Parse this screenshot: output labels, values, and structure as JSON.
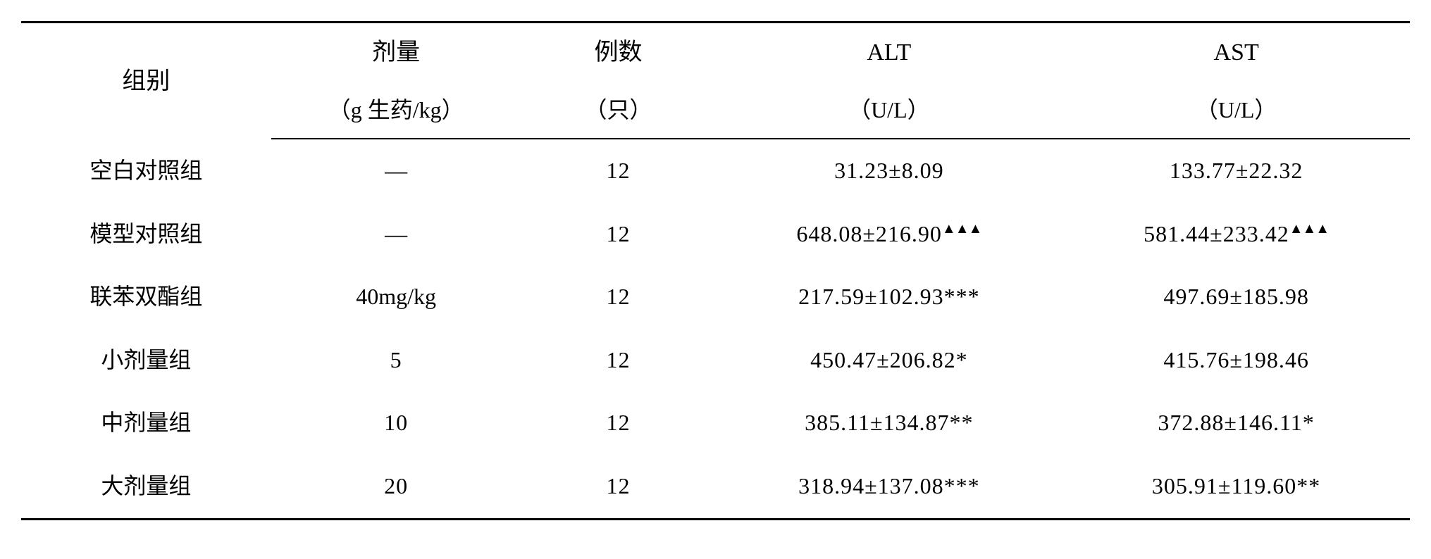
{
  "table": {
    "headers": {
      "group": {
        "main": "组别",
        "sub": ""
      },
      "dose": {
        "main": "剂量",
        "sub": "（g 生药/kg）"
      },
      "count": {
        "main": "例数",
        "sub": "（只）"
      },
      "alt": {
        "main": "ALT",
        "sub": "（U/L）"
      },
      "ast": {
        "main": "AST",
        "sub": "（U/L）"
      }
    },
    "rows": [
      {
        "group": "空白对照组",
        "dose": "—",
        "count": "12",
        "alt_val": "31.23±8.09",
        "alt_mark": "",
        "ast_val": "133.77±22.32",
        "ast_mark": ""
      },
      {
        "group": "模型对照组",
        "dose": "—",
        "count": "12",
        "alt_val": "648.08±216.90",
        "alt_mark": "▲▲▲",
        "ast_val": "581.44±233.42",
        "ast_mark": "▲▲▲"
      },
      {
        "group": "联苯双酯组",
        "dose": "40mg/kg",
        "count": "12",
        "alt_val": "217.59±102.93",
        "alt_mark": "***",
        "ast_val": "497.69±185.98",
        "ast_mark": ""
      },
      {
        "group": "小剂量组",
        "dose": "5",
        "count": "12",
        "alt_val": "450.47±206.82",
        "alt_mark": "*",
        "ast_val": "415.76±198.46",
        "ast_mark": ""
      },
      {
        "group": "中剂量组",
        "dose": "10",
        "count": "12",
        "alt_val": "385.11±134.87",
        "alt_mark": "**",
        "ast_val": "372.88±146.11",
        "ast_mark": "*"
      },
      {
        "group": "大剂量组",
        "dose": "20",
        "count": "12",
        "alt_val": "318.94±137.08",
        "alt_mark": "***",
        "ast_val": "305.91±119.60",
        "ast_mark": "**"
      }
    ],
    "styling": {
      "border_top_width": 3,
      "border_mid_width": 2,
      "border_bottom_width": 3,
      "border_color": "#000000",
      "background_color": "#ffffff",
      "font_size": 32,
      "header_font_size": 34,
      "font_family_cjk": "SimSun",
      "font_family_latin": "Times New Roman",
      "column_widths_pct": [
        18,
        18,
        14,
        25,
        25
      ],
      "row_padding_v": 16
    }
  }
}
